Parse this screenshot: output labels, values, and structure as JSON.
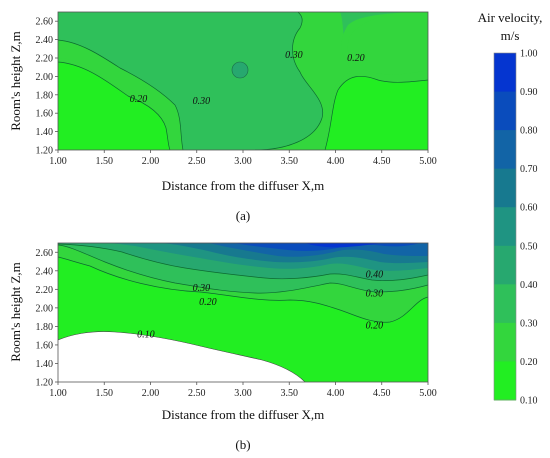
{
  "chart_data": [
    {
      "type": "contour",
      "caption": "(a)",
      "xlabel": "Distance from the diffuser X,m",
      "ylabel": "Room's height Z,m",
      "xlim": [
        1.0,
        5.0
      ],
      "ylim": [
        1.2,
        2.7
      ],
      "xticks": [
        "1.00",
        "1.50",
        "2.00",
        "2.50",
        "3.00",
        "3.50",
        "4.00",
        "4.50",
        "5.00"
      ],
      "yticks": [
        "1.20",
        "1.40",
        "1.60",
        "1.80",
        "2.00",
        "2.20",
        "2.40",
        "2.60"
      ],
      "contour_labels": [
        {
          "text": "0.20",
          "x": 1.87,
          "y": 1.72
        },
        {
          "text": "0.30",
          "x": 2.55,
          "y": 1.7
        },
        {
          "text": "0.30",
          "x": 3.55,
          "y": 2.2
        },
        {
          "text": "0.20",
          "x": 4.22,
          "y": 2.17
        }
      ]
    },
    {
      "type": "contour",
      "caption": "(b)",
      "xlabel": "Distance from the diffuser X,m",
      "ylabel": "Room's height Z,m",
      "xlim": [
        1.0,
        5.0
      ],
      "ylim": [
        1.2,
        2.7
      ],
      "xticks": [
        "1.00",
        "1.50",
        "2.00",
        "2.50",
        "3.00",
        "3.50",
        "4.00",
        "4.50",
        "5.00"
      ],
      "yticks": [
        "1.20",
        "1.40",
        "1.60",
        "1.80",
        "2.00",
        "2.20",
        "2.40",
        "2.60"
      ],
      "contour_labels": [
        {
          "text": "0.10",
          "x": 1.95,
          "y": 1.68
        },
        {
          "text": "0.20",
          "x": 2.62,
          "y": 2.03
        },
        {
          "text": "0.30",
          "x": 2.55,
          "y": 2.18
        },
        {
          "text": "0.40",
          "x": 4.42,
          "y": 2.33
        },
        {
          "text": "0.30",
          "x": 4.42,
          "y": 2.12
        },
        {
          "text": "0.20",
          "x": 4.42,
          "y": 1.78
        }
      ]
    }
  ],
  "legend": {
    "title_line1": "Air velocity,",
    "title_line2": "m/s",
    "levels": [
      "1.00",
      "0.90",
      "0.80",
      "0.70",
      "0.60",
      "0.50",
      "0.40",
      "0.30",
      "0.20",
      "0.10"
    ],
    "colors": {
      "0.10-0.20": "#22ee22",
      "0.20-0.30": "#33d63d",
      "0.30-0.40": "#2fc05a",
      "0.40-0.50": "#27a86f",
      "0.50-0.60": "#1f9482",
      "0.60-0.70": "#17798f",
      "0.70-0.80": "#1264a6",
      "0.80-0.90": "#0a4cbc",
      "0.90-1.00": "#0535d0"
    }
  }
}
